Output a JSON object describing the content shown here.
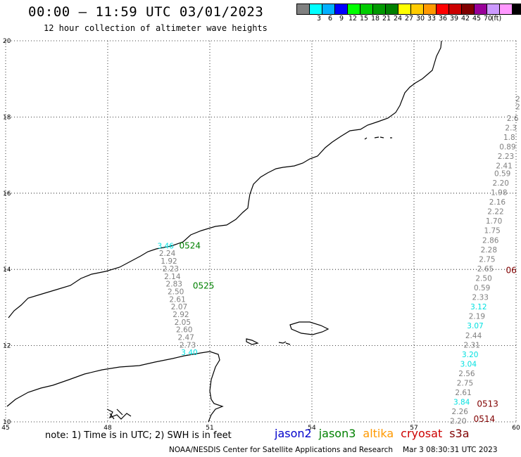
{
  "header": {
    "title": "00:00 – 11:59 UTC 03/01/2023",
    "subtitle": "12 hour collection of altimeter wave heights"
  },
  "legend": {
    "unit": "(ft)",
    "bins": [
      {
        "label": "",
        "color": "#808080"
      },
      {
        "label": "3",
        "color": "#00ffff"
      },
      {
        "label": "6",
        "color": "#00b0ff"
      },
      {
        "label": "9",
        "color": "#0000ff"
      },
      {
        "label": "12",
        "color": "#00ff00"
      },
      {
        "label": "15",
        "color": "#00cc00"
      },
      {
        "label": "18",
        "color": "#009900"
      },
      {
        "label": "21",
        "color": "#008000"
      },
      {
        "label": "24",
        "color": "#ffff00"
      },
      {
        "label": "27",
        "color": "#ffcc00"
      },
      {
        "label": "30",
        "color": "#ff9900"
      },
      {
        "label": "33",
        "color": "#ff0000"
      },
      {
        "label": "36",
        "color": "#cc0000"
      },
      {
        "label": "39",
        "color": "#800000"
      },
      {
        "label": "42",
        "color": "#990099"
      },
      {
        "label": "45",
        "color": "#cc99ff"
      },
      {
        "label": "70",
        "color": "#ff99ff"
      },
      {
        "label": "",
        "color": "#000000"
      }
    ]
  },
  "map": {
    "lon_ticks": [
      "45",
      "48",
      "51",
      "54",
      "57",
      "60"
    ],
    "lat_ticks": [
      "10",
      "12",
      "14",
      "16",
      "18",
      "20"
    ],
    "colors": {
      "gray": "#808080",
      "cyan": "#00e0e0",
      "jason3": "#008000",
      "cryosat": "#800000"
    },
    "tracks": [
      {
        "time_labels": [
          {
            "text": "0524",
            "lon": 50.1,
            "lat": 14.55,
            "color": "jason3"
          },
          {
            "text": "0525",
            "lon": 50.5,
            "lat": 13.5,
            "color": "jason3"
          }
        ],
        "points": [
          {
            "v": "3.46",
            "lon": 49.7,
            "lat": 14.55,
            "c": "cyan"
          },
          {
            "v": "2.24",
            "lon": 49.75,
            "lat": 14.35,
            "c": "gray"
          },
          {
            "v": "1.92",
            "lon": 49.8,
            "lat": 14.15,
            "c": "gray"
          },
          {
            "v": "2.23",
            "lon": 49.85,
            "lat": 13.95,
            "c": "gray"
          },
          {
            "v": "2.14",
            "lon": 49.9,
            "lat": 13.75,
            "c": "gray"
          },
          {
            "v": "2.83",
            "lon": 49.95,
            "lat": 13.55,
            "c": "gray"
          },
          {
            "v": "2.50",
            "lon": 50.0,
            "lat": 13.35,
            "c": "gray"
          },
          {
            "v": "2.61",
            "lon": 50.05,
            "lat": 13.15,
            "c": "gray"
          },
          {
            "v": "2.07",
            "lon": 50.1,
            "lat": 12.95,
            "c": "gray"
          },
          {
            "v": "2.92",
            "lon": 50.15,
            "lat": 12.75,
            "c": "gray"
          },
          {
            "v": "2.05",
            "lon": 50.2,
            "lat": 12.55,
            "c": "gray"
          },
          {
            "v": "2.60",
            "lon": 50.25,
            "lat": 12.35,
            "c": "gray"
          },
          {
            "v": "2.47",
            "lon": 50.3,
            "lat": 12.15,
            "c": "gray"
          },
          {
            "v": "2.73",
            "lon": 50.35,
            "lat": 11.95,
            "c": "gray"
          },
          {
            "v": "3.40",
            "lon": 50.4,
            "lat": 11.75,
            "c": "cyan"
          }
        ]
      },
      {
        "time_labels": [
          {
            "text": "06",
            "lon": 59.7,
            "lat": 13.9,
            "color": "cryosat"
          },
          {
            "text": "0513",
            "lon": 58.85,
            "lat": 10.4,
            "color": "cryosat"
          },
          {
            "text": "0514",
            "lon": 58.75,
            "lat": 10.0,
            "color": "cryosat"
          }
        ],
        "points": [
          {
            "v": "2",
            "lon": 60.05,
            "lat": 18.4,
            "c": "gray"
          },
          {
            "v": "2",
            "lon": 60.05,
            "lat": 18.2,
            "c": "gray"
          },
          {
            "v": "2.6",
            "lon": 59.9,
            "lat": 17.9,
            "c": "gray"
          },
          {
            "v": "2.3",
            "lon": 59.85,
            "lat": 17.65,
            "c": "gray"
          },
          {
            "v": "1.8",
            "lon": 59.8,
            "lat": 17.4,
            "c": "gray"
          },
          {
            "v": "0.89",
            "lon": 59.75,
            "lat": 17.15,
            "c": "gray"
          },
          {
            "v": "2.23",
            "lon": 59.7,
            "lat": 16.9,
            "c": "gray"
          },
          {
            "v": "2.41",
            "lon": 59.65,
            "lat": 16.65,
            "c": "gray"
          },
          {
            "v": "0.59",
            "lon": 59.6,
            "lat": 16.45,
            "c": "gray"
          },
          {
            "v": "2.20",
            "lon": 59.55,
            "lat": 16.2,
            "c": "gray"
          },
          {
            "v": "1.98",
            "lon": 59.5,
            "lat": 15.95,
            "c": "gray"
          },
          {
            "v": "2.16",
            "lon": 59.45,
            "lat": 15.7,
            "c": "gray"
          },
          {
            "v": "2.22",
            "lon": 59.4,
            "lat": 15.45,
            "c": "gray"
          },
          {
            "v": "1.70",
            "lon": 59.35,
            "lat": 15.2,
            "c": "gray"
          },
          {
            "v": "1.75",
            "lon": 59.3,
            "lat": 14.95,
            "c": "gray"
          },
          {
            "v": "2.86",
            "lon": 59.25,
            "lat": 14.7,
            "c": "gray"
          },
          {
            "v": "2.28",
            "lon": 59.2,
            "lat": 14.45,
            "c": "gray"
          },
          {
            "v": "2.75",
            "lon": 59.15,
            "lat": 14.2,
            "c": "gray"
          },
          {
            "v": "2.65",
            "lon": 59.1,
            "lat": 13.95,
            "c": "gray"
          },
          {
            "v": "2.50",
            "lon": 59.05,
            "lat": 13.7,
            "c": "gray"
          },
          {
            "v": "0.59",
            "lon": 59.0,
            "lat": 13.45,
            "c": "gray"
          },
          {
            "v": "2.33",
            "lon": 58.95,
            "lat": 13.2,
            "c": "gray"
          },
          {
            "v": "3.12",
            "lon": 58.9,
            "lat": 12.95,
            "c": "cyan"
          },
          {
            "v": "2.19",
            "lon": 58.85,
            "lat": 12.7,
            "c": "gray"
          },
          {
            "v": "3.07",
            "lon": 58.8,
            "lat": 12.45,
            "c": "cyan"
          },
          {
            "v": "2.44",
            "lon": 58.75,
            "lat": 12.2,
            "c": "gray"
          },
          {
            "v": "2.31",
            "lon": 58.7,
            "lat": 11.95,
            "c": "gray"
          },
          {
            "v": "3.20",
            "lon": 58.65,
            "lat": 11.7,
            "c": "cyan"
          },
          {
            "v": "3.04",
            "lon": 58.6,
            "lat": 11.45,
            "c": "cyan"
          },
          {
            "v": "2.56",
            "lon": 58.55,
            "lat": 11.2,
            "c": "gray"
          },
          {
            "v": "2.75",
            "lon": 58.5,
            "lat": 10.95,
            "c": "gray"
          },
          {
            "v": "2.61",
            "lon": 58.45,
            "lat": 10.7,
            "c": "gray"
          },
          {
            "v": "3.84",
            "lon": 58.4,
            "lat": 10.45,
            "c": "cyan"
          },
          {
            "v": "2.26",
            "lon": 58.35,
            "lat": 10.2,
            "c": "gray"
          },
          {
            "v": "2.20",
            "lon": 58.3,
            "lat": 9.95,
            "c": "gray"
          }
        ]
      }
    ]
  },
  "note": "note: 1) Time is in UTC; 2) SWH is in feet",
  "satellites": [
    {
      "name": "jason2",
      "color": "#0000cc"
    },
    {
      "name": "jason3",
      "color": "#008000"
    },
    {
      "name": "altika",
      "color": "#ff9900"
    },
    {
      "name": "cryosat",
      "color": "#cc0000"
    },
    {
      "name": "s3a",
      "color": "#800000"
    }
  ],
  "footer": {
    "credit": "NOAA/NESDIS Center for Satellite Applications and Research",
    "timestamp": "Mar  3 08:30:31 UTC 2023"
  }
}
